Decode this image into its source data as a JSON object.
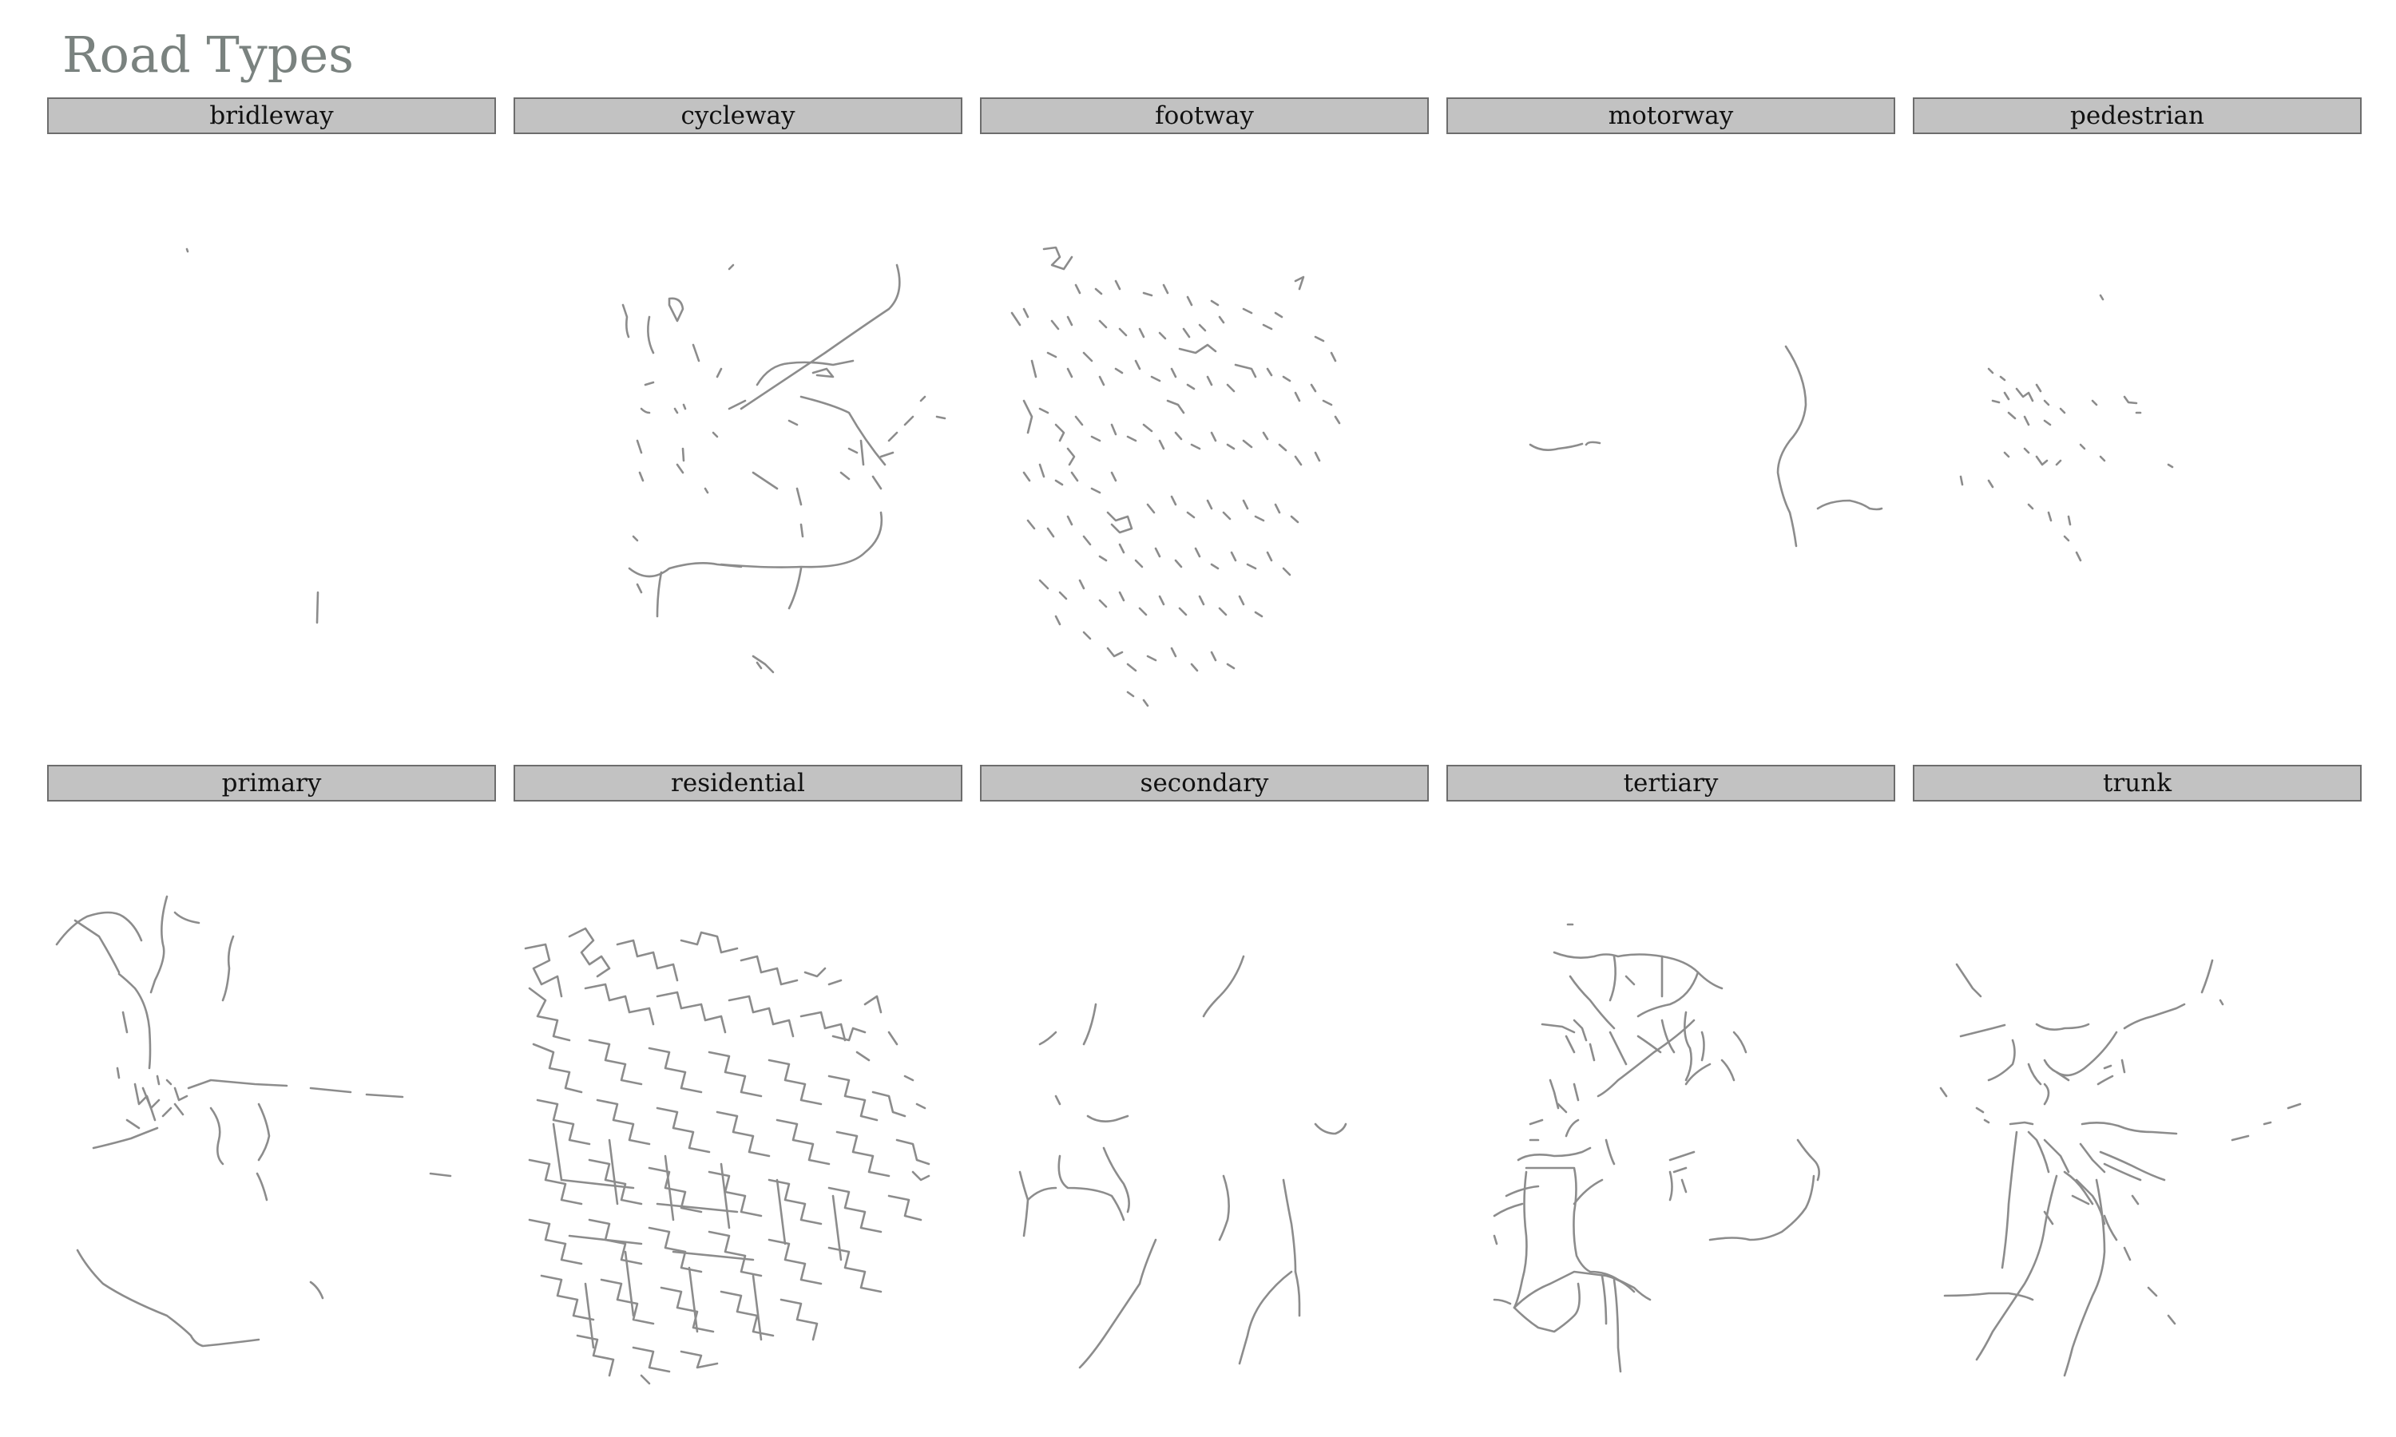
{
  "title": "Road Types",
  "colors": {
    "road": "#8c8c8c",
    "strip_fill": "#c2c2c2",
    "strip_border": "#6d6d6d",
    "title": "#7a827f",
    "background": "#ffffff"
  },
  "chart_data": {
    "type": "small-multiples-map",
    "facet_variable": "road type",
    "facets": [
      {
        "label": "bridleway",
        "density": "very sparse"
      },
      {
        "label": "cycleway",
        "density": "sparse"
      },
      {
        "label": "footway",
        "density": "medium"
      },
      {
        "label": "motorway",
        "density": "very sparse"
      },
      {
        "label": "pedestrian",
        "density": "very sparse"
      },
      {
        "label": "primary",
        "density": "sparse"
      },
      {
        "label": "residential",
        "density": "very dense"
      },
      {
        "label": "secondary",
        "density": "sparse"
      },
      {
        "label": "tertiary",
        "density": "sparse"
      },
      {
        "label": "trunk",
        "density": "sparse"
      }
    ]
  }
}
